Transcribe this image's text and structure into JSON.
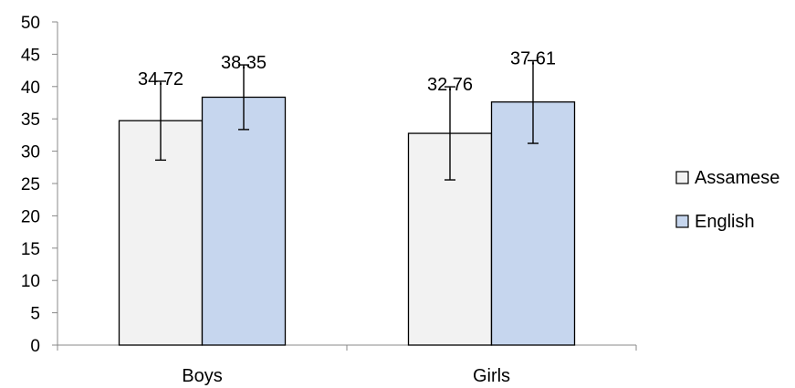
{
  "chart_data": {
    "type": "bar",
    "categories": [
      "Boys",
      "Girls"
    ],
    "series": [
      {
        "name": "Assamese",
        "values": [
          34.72,
          32.76
        ],
        "error": [
          6.1,
          7.2
        ],
        "color": "#f2f2f2"
      },
      {
        "name": "English",
        "values": [
          38.35,
          37.61
        ],
        "error": [
          5.0,
          6.4
        ],
        "color": "#c6d6ee"
      }
    ],
    "ylim": [
      0,
      50
    ],
    "yticks": [
      0,
      5,
      10,
      15,
      20,
      25,
      30,
      35,
      40,
      45,
      50
    ],
    "title": "",
    "xlabel": "",
    "ylabel": "",
    "grid": false,
    "legend": "right",
    "error_bars": true,
    "data_labels": [
      "34.72",
      "38.35",
      "32.76",
      "37.61"
    ]
  }
}
